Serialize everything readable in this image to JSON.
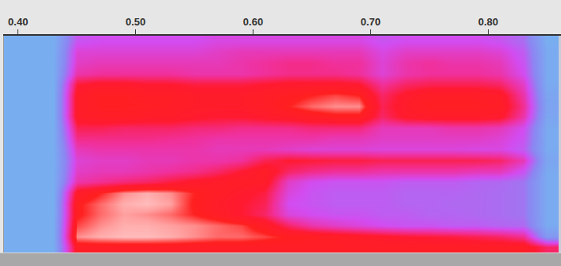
{
  "chart_data": {
    "type": "heatmap",
    "xlim": [
      0.388,
      0.862
    ],
    "xticks": [
      {
        "value": 0.4,
        "label": "0.40"
      },
      {
        "value": 0.5,
        "label": "0.50"
      },
      {
        "value": 0.6,
        "label": "0.60"
      },
      {
        "value": 0.7,
        "label": "0.70"
      },
      {
        "value": 0.8,
        "label": "0.80"
      }
    ],
    "ylim": [
      0,
      5000
    ],
    "zlim": [
      0,
      100
    ],
    "tick_labels": "x",
    "x": [
      0.39,
      0.41,
      0.43,
      0.45,
      0.47,
      0.49,
      0.51,
      0.53,
      0.55,
      0.57,
      0.59,
      0.61,
      0.63,
      0.65,
      0.67,
      0.69,
      0.71,
      0.73,
      0.75,
      0.77,
      0.79,
      0.81,
      0.83,
      0.85
    ],
    "y": [
      125,
      375,
      625,
      875,
      1125,
      1375,
      1625,
      1875,
      2125,
      2375,
      2625,
      2875,
      3125,
      3375,
      3625,
      3875,
      4125,
      4375,
      4625,
      4875
    ],
    "z": [
      [
        20,
        20,
        20,
        82,
        82,
        82,
        82,
        82,
        82,
        82,
        82,
        82,
        82,
        82,
        82,
        82,
        82,
        82,
        82,
        82,
        82,
        82,
        82,
        70
      ],
      [
        20,
        20,
        20,
        92,
        94,
        95,
        95,
        94,
        92,
        90,
        90,
        88,
        85,
        84,
        82,
        80,
        78,
        76,
        75,
        74,
        72,
        70,
        65,
        30
      ],
      [
        20,
        20,
        20,
        88,
        92,
        94,
        94,
        93,
        92,
        90,
        88,
        82,
        70,
        62,
        58,
        55,
        52,
        50,
        50,
        48,
        48,
        46,
        45,
        22
      ],
      [
        20,
        20,
        20,
        85,
        90,
        93,
        92,
        90,
        86,
        82,
        76,
        70,
        55,
        52,
        50,
        50,
        48,
        48,
        46,
        46,
        45,
        44,
        42,
        22
      ],
      [
        20,
        20,
        20,
        85,
        90,
        94,
        95,
        93,
        85,
        80,
        76,
        72,
        52,
        50,
        48,
        48,
        48,
        46,
        46,
        45,
        45,
        44,
        42,
        22
      ],
      [
        20,
        20,
        20,
        80,
        86,
        92,
        94,
        92,
        86,
        82,
        78,
        74,
        55,
        50,
        48,
        48,
        48,
        46,
        46,
        46,
        45,
        44,
        42,
        22
      ],
      [
        20,
        20,
        20,
        62,
        65,
        68,
        70,
        74,
        78,
        80,
        82,
        80,
        58,
        52,
        50,
        50,
        50,
        48,
        48,
        48,
        46,
        45,
        42,
        22
      ],
      [
        20,
        20,
        20,
        58,
        60,
        60,
        62,
        64,
        66,
        70,
        76,
        82,
        70,
        66,
        64,
        64,
        62,
        62,
        62,
        62,
        60,
        60,
        50,
        22
      ],
      [
        20,
        20,
        20,
        56,
        58,
        58,
        60,
        60,
        62,
        62,
        64,
        72,
        76,
        75,
        74,
        74,
        72,
        72,
        72,
        72,
        72,
        70,
        60,
        24
      ],
      [
        20,
        20,
        20,
        60,
        62,
        62,
        62,
        62,
        62,
        60,
        60,
        60,
        58,
        56,
        56,
        56,
        55,
        55,
        55,
        55,
        54,
        54,
        48,
        22
      ],
      [
        20,
        20,
        20,
        66,
        66,
        66,
        66,
        65,
        64,
        62,
        62,
        62,
        62,
        62,
        60,
        60,
        58,
        58,
        58,
        58,
        58,
        56,
        50,
        22
      ],
      [
        20,
        20,
        20,
        72,
        72,
        70,
        70,
        70,
        68,
        68,
        66,
        66,
        66,
        68,
        68,
        68,
        60,
        60,
        60,
        62,
        62,
        60,
        52,
        22
      ],
      [
        20,
        20,
        20,
        80,
        82,
        82,
        80,
        80,
        78,
        76,
        76,
        78,
        80,
        82,
        84,
        84,
        70,
        78,
        80,
        80,
        80,
        78,
        62,
        24
      ],
      [
        20,
        20,
        20,
        80,
        84,
        84,
        84,
        82,
        80,
        80,
        80,
        82,
        86,
        90,
        92,
        92,
        72,
        80,
        84,
        84,
        84,
        82,
        65,
        25
      ],
      [
        20,
        20,
        20,
        80,
        84,
        84,
        82,
        82,
        80,
        80,
        80,
        82,
        84,
        86,
        88,
        86,
        70,
        78,
        82,
        82,
        82,
        80,
        62,
        24
      ],
      [
        20,
        20,
        20,
        75,
        78,
        78,
        76,
        76,
        74,
        74,
        74,
        76,
        78,
        78,
        78,
        76,
        64,
        70,
        72,
        72,
        72,
        70,
        58,
        22
      ],
      [
        20,
        20,
        20,
        62,
        64,
        64,
        64,
        64,
        62,
        62,
        62,
        64,
        66,
        66,
        66,
        64,
        56,
        62,
        64,
        64,
        64,
        62,
        52,
        22
      ],
      [
        20,
        20,
        20,
        58,
        60,
        60,
        60,
        60,
        60,
        60,
        62,
        64,
        66,
        66,
        64,
        64,
        56,
        62,
        64,
        62,
        62,
        60,
        50,
        22
      ],
      [
        20,
        20,
        20,
        56,
        56,
        56,
        56,
        56,
        56,
        58,
        60,
        60,
        60,
        60,
        60,
        60,
        54,
        58,
        58,
        58,
        58,
        56,
        48,
        22
      ],
      [
        20,
        20,
        20,
        50,
        52,
        52,
        52,
        52,
        52,
        54,
        54,
        54,
        54,
        54,
        54,
        54,
        50,
        52,
        52,
        52,
        52,
        50,
        44,
        20
      ]
    ]
  }
}
